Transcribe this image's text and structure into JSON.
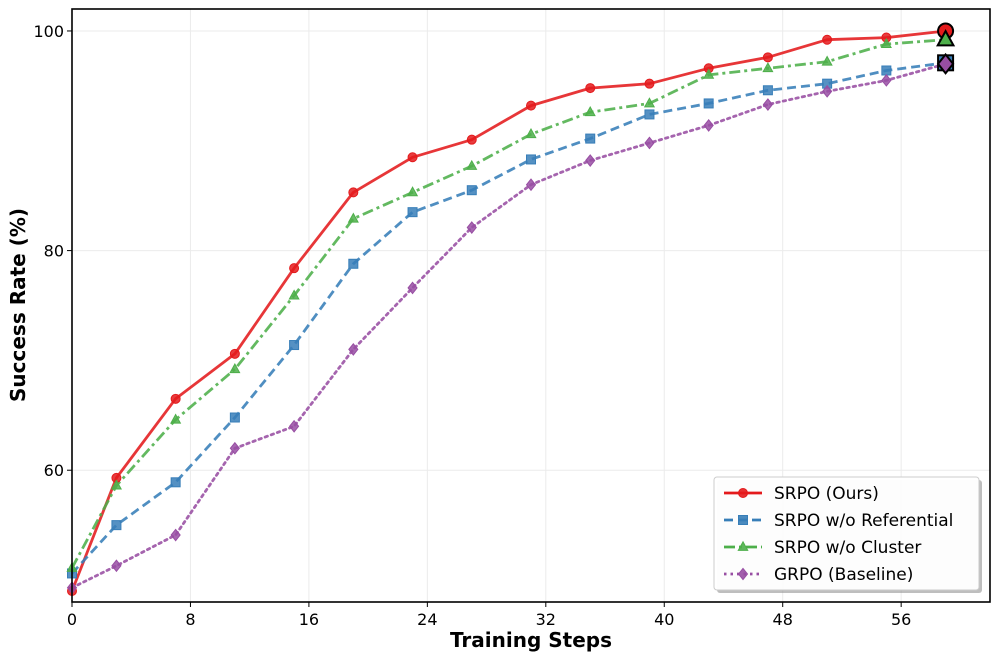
{
  "chart_data": {
    "type": "line",
    "title": "",
    "xlabel": "Training Steps",
    "ylabel": "Success Rate (%)",
    "xlim": [
      0,
      62
    ],
    "ylim": [
      48,
      102
    ],
    "xticks": [
      0,
      8,
      16,
      24,
      32,
      40,
      48,
      56
    ],
    "xtick_labels": [
      "0",
      "8",
      "16",
      "24",
      "32",
      "40",
      "48",
      "56"
    ],
    "yticks": [
      60,
      80,
      100
    ],
    "ytick_labels": [
      "60",
      "80",
      "100"
    ],
    "grid": true,
    "legend_position": "lower-right",
    "x": [
      0,
      3,
      7,
      11,
      15,
      19,
      23,
      27,
      31,
      35,
      39,
      43,
      47,
      51,
      55,
      59
    ],
    "series": [
      {
        "name": "SRPO (Ours)",
        "color": "#e41a1c",
        "linestyle": "solid",
        "marker": "circle",
        "values": [
          49.0,
          59.3,
          66.5,
          70.6,
          78.4,
          85.3,
          88.5,
          90.1,
          93.2,
          94.8,
          95.2,
          96.6,
          97.6,
          99.2,
          99.4,
          100.0
        ]
      },
      {
        "name": "SRPO w/o Referential",
        "color": "#377eb8",
        "linestyle": "dashed",
        "marker": "square",
        "values": [
          50.6,
          55.0,
          58.9,
          64.8,
          71.4,
          78.8,
          83.5,
          85.5,
          88.3,
          90.2,
          92.4,
          93.4,
          94.6,
          95.2,
          96.4,
          97.1
        ]
      },
      {
        "name": "SRPO w/o Cluster",
        "color": "#4daf4a",
        "linestyle": "dashdot",
        "marker": "triangle",
        "values": [
          51.1,
          58.6,
          64.6,
          69.2,
          75.9,
          82.9,
          85.3,
          87.7,
          90.6,
          92.6,
          93.4,
          96.0,
          96.6,
          97.2,
          98.8,
          99.2
        ]
      },
      {
        "name": "GRPO (Baseline)",
        "color": "#984ea3",
        "linestyle": "dotted",
        "marker": "diamond",
        "values": [
          49.3,
          51.3,
          54.1,
          62.0,
          64.0,
          71.0,
          76.6,
          82.1,
          86.0,
          88.2,
          89.8,
          91.4,
          93.3,
          94.5,
          95.5,
          97.0
        ]
      }
    ]
  }
}
